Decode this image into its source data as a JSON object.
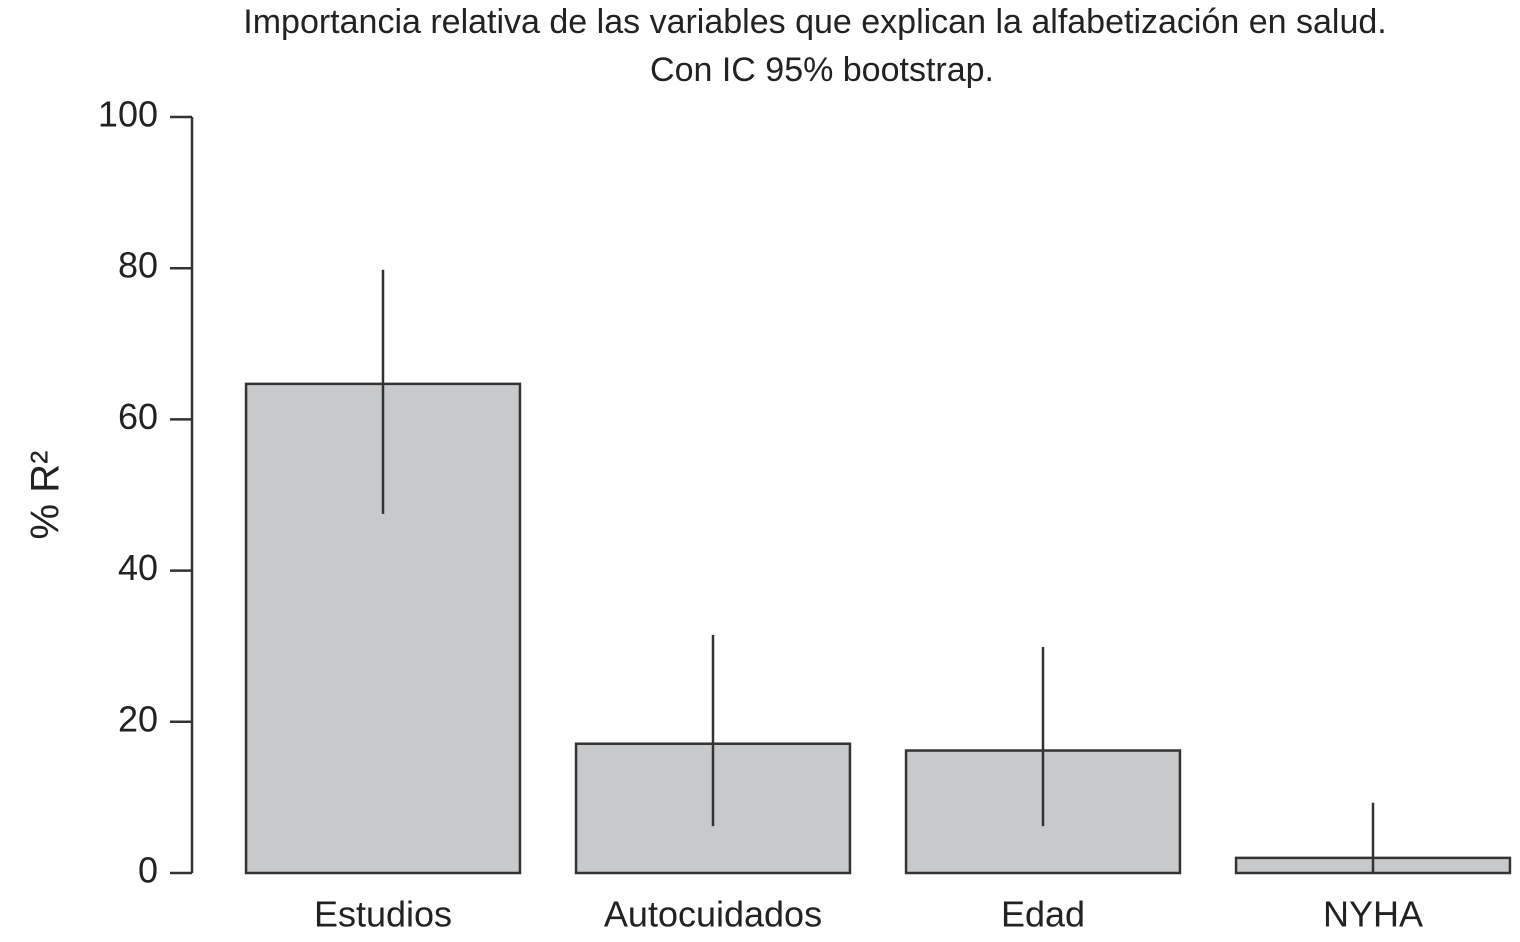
{
  "chart_data": {
    "type": "bar",
    "title": [
      "Importancia relativa de las variables que explican la alfabetización en salud.",
      "Con IC 95% bootstrap."
    ],
    "ylabel": "% R²",
    "categories": [
      "Estudios",
      "Autocuidados",
      "Edad",
      "NYHA"
    ],
    "values": [
      64.7,
      17.1,
      16.2,
      2.0
    ],
    "ci_low": [
      47.5,
      6.2,
      6.2,
      0
    ],
    "ci_high": [
      79.8,
      31.5,
      29.9,
      9.3
    ],
    "color": "#c8c9cb",
    "ylim": [
      0,
      100
    ],
    "yticks": [
      0,
      20,
      40,
      60,
      80,
      100
    ],
    "grid": false
  }
}
